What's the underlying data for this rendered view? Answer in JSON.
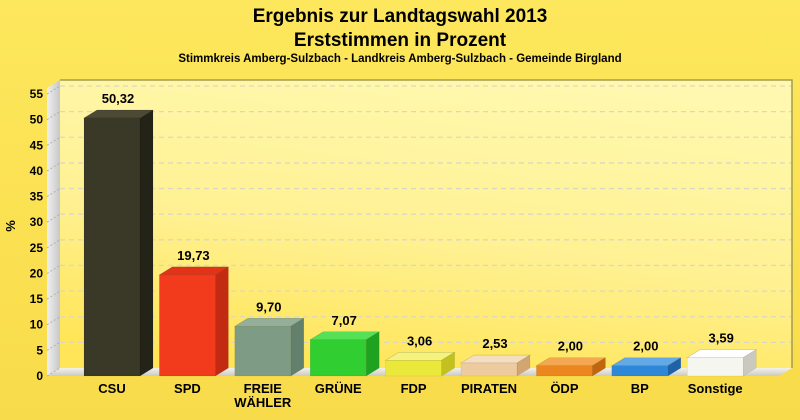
{
  "chart_data": {
    "type": "bar",
    "three_d": true,
    "title_line1": "Ergebnis zur Landtagswahl 2013",
    "title_line2": "Erststimmen in Prozent",
    "subtitle": "Stimmkreis Amberg-Sulzbach - Landkreis Amberg-Sulzbach - Gemeinde Birgland",
    "ylabel": "%",
    "xlabel": "",
    "ylim": [
      0,
      56
    ],
    "ytick_step": 5,
    "yticks": [
      0,
      5,
      10,
      15,
      20,
      25,
      30,
      35,
      40,
      45,
      50,
      55
    ],
    "grid": "horizontal-dashed",
    "legend": "none",
    "categories": [
      "CSU",
      "SPD",
      "FREIE WÄHLER",
      "GRÜNE",
      "FDP",
      "PIRATEN",
      "ÖDP",
      "BP",
      "Sonstige"
    ],
    "values": [
      50.32,
      19.73,
      9.7,
      7.07,
      3.06,
      2.53,
      2.0,
      2.0,
      3.59
    ],
    "value_labels": [
      "50,32",
      "19,73",
      "9,70",
      "7,07",
      "3,06",
      "2,53",
      "2,00",
      "2,00",
      "3,59"
    ],
    "bars": [
      {
        "party": "CSU",
        "lines": [
          "CSU"
        ],
        "value": 50.32,
        "display": "50,32",
        "front": "#3A3927",
        "top": "#4C4A35",
        "side": "#232317"
      },
      {
        "party": "SPD",
        "lines": [
          "SPD"
        ],
        "value": 19.73,
        "display": "19,73",
        "front": "#F23A1C",
        "top": "#E23318",
        "side": "#C22B12"
      },
      {
        "party": "FREIE WÄHLER",
        "lines": [
          "FREIE",
          "WÄHLER"
        ],
        "value": 9.7,
        "display": "9,70",
        "front": "#7E9C85",
        "top": "#93AF9A",
        "side": "#62806B"
      },
      {
        "party": "GRÜNE",
        "lines": [
          "GRÜNE"
        ],
        "value": 7.07,
        "display": "7,07",
        "front": "#30CE30",
        "top": "#55E055",
        "side": "#1FA21F"
      },
      {
        "party": "FDP",
        "lines": [
          "FDP"
        ],
        "value": 3.06,
        "display": "3,06",
        "front": "#EAE93B",
        "top": "#F4F380",
        "side": "#C2C11E"
      },
      {
        "party": "PIRATEN",
        "lines": [
          "PIRATEN"
        ],
        "value": 2.53,
        "display": "2,53",
        "front": "#EECB9F",
        "top": "#F5DDC0",
        "side": "#D3A571"
      },
      {
        "party": "ÖDP",
        "lines": [
          "ÖDP"
        ],
        "value": 2.0,
        "display": "2,00",
        "front": "#EC871F",
        "top": "#F3A851",
        "side": "#C0660D"
      },
      {
        "party": "BP",
        "lines": [
          "BP"
        ],
        "value": 2.0,
        "display": "2,00",
        "front": "#2F88D7",
        "top": "#63A9E5",
        "side": "#1E63A9"
      },
      {
        "party": "Sonstige",
        "lines": [
          "Sonstige"
        ],
        "value": 3.59,
        "display": "3,59",
        "front": "#F6F6F0",
        "top": "#FFFFFF",
        "side": "#C9C9C0"
      }
    ],
    "frame_colors": {
      "page_background": "#FBE152",
      "plot_top": "#FFF8AE",
      "plot_bottom": "#FFE557",
      "wall_light": "#F0F0F0",
      "wall_dark": "#C7C7C7",
      "floor_back": "#F2F2EB",
      "floor_front": "#CBCBC3",
      "grid": "#D9D7C5",
      "border": "#A29C52",
      "text": "#000000"
    }
  }
}
